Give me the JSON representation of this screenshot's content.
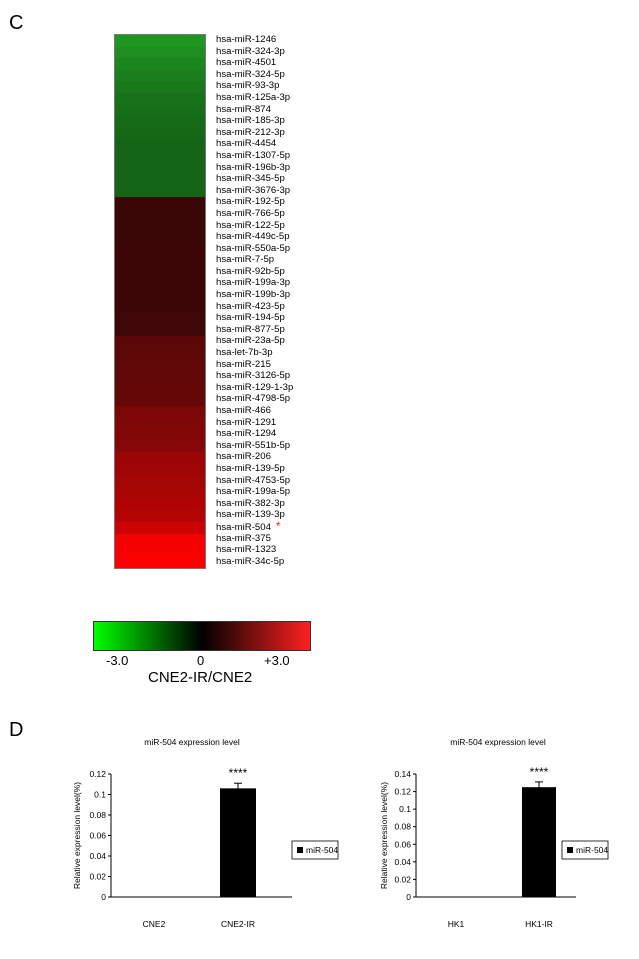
{
  "panel_c": {
    "label": "C",
    "heatmap_rows": [
      {
        "name": "hsa-miR-1246",
        "color": "#1e9620"
      },
      {
        "name": "hsa-miR-324-3p",
        "color": "#1d8e1f"
      },
      {
        "name": "hsa-miR-4501",
        "color": "#1b861d"
      },
      {
        "name": "hsa-miR-324-5p",
        "color": "#1a7f1c"
      },
      {
        "name": "hsa-miR-93-3p",
        "color": "#18781a"
      },
      {
        "name": "hsa-miR-125a-3p",
        "color": "#177219"
      },
      {
        "name": "hsa-miR-874",
        "color": "#166e18"
      },
      {
        "name": "hsa-miR-185-3p",
        "color": "#156b17"
      },
      {
        "name": "hsa-miR-212-3p",
        "color": "#146816"
      },
      {
        "name": "hsa-miR-4454",
        "color": "#146616"
      },
      {
        "name": "hsa-miR-1307-5p",
        "color": "#136415"
      },
      {
        "name": "hsa-miR-196b-3p",
        "color": "#136415"
      },
      {
        "name": "hsa-miR-345-5p",
        "color": "#136415"
      },
      {
        "name": "hsa-miR-3676-3p",
        "color": "#136415"
      },
      {
        "name": "hsa-miR-192-5p",
        "color": "#3a0606"
      },
      {
        "name": "hsa-miR-766-5p",
        "color": "#3a0606"
      },
      {
        "name": "hsa-miR-122-5p",
        "color": "#3b0606"
      },
      {
        "name": "hsa-miR-449c-5p",
        "color": "#3b0606"
      },
      {
        "name": "hsa-miR-550a-5p",
        "color": "#3c0606"
      },
      {
        "name": "hsa-miR-7-5p",
        "color": "#3c0606"
      },
      {
        "name": "hsa-miR-92b-5p",
        "color": "#3c0606"
      },
      {
        "name": "hsa-miR-199a-3p",
        "color": "#3d0606"
      },
      {
        "name": "hsa-miR-199b-3p",
        "color": "#3d0606"
      },
      {
        "name": "hsa-miR-423-5p",
        "color": "#3d0606"
      },
      {
        "name": "hsa-miR-194-5p",
        "color": "#3e0606"
      },
      {
        "name": "hsa-miR-877-5p",
        "color": "#3e0606"
      },
      {
        "name": "hsa-miR-23a-5p",
        "color": "#5c0707"
      },
      {
        "name": "hsa-let-7b-3p",
        "color": "#5e0707"
      },
      {
        "name": "hsa-miR-215",
        "color": "#600707"
      },
      {
        "name": "hsa-miR-3126-5p",
        "color": "#620707"
      },
      {
        "name": "hsa-miR-129-1-3p",
        "color": "#640707"
      },
      {
        "name": "hsa-miR-4798-5p",
        "color": "#660707"
      },
      {
        "name": "hsa-miR-466",
        "color": "#7d0707"
      },
      {
        "name": "hsa-miR-1291",
        "color": "#800707"
      },
      {
        "name": "hsa-miR-1294",
        "color": "#830707"
      },
      {
        "name": "hsa-miR-551b-5p",
        "color": "#860707"
      },
      {
        "name": "hsa-miR-206",
        "color": "#9c0505"
      },
      {
        "name": "hsa-miR-139-5p",
        "color": "#a00505"
      },
      {
        "name": "hsa-miR-4753-5p",
        "color": "#a40505"
      },
      {
        "name": "hsa-miR-199a-5p",
        "color": "#a80505"
      },
      {
        "name": "hsa-miR-382-3p",
        "color": "#b00404"
      },
      {
        "name": "hsa-miR-139-3p",
        "color": "#b40404"
      },
      {
        "name": "hsa-miR-504",
        "color": "#cc0303",
        "star": "*"
      },
      {
        "name": "hsa-miR-375",
        "color": "#f20202"
      },
      {
        "name": "hsa-miR-1323",
        "color": "#f60202"
      },
      {
        "name": "hsa-miR-34c-5p",
        "color": "#fa0202"
      }
    ],
    "colorbar": {
      "colors": [
        "#00ff00",
        "#000000",
        "#ff2020"
      ],
      "ticks": [
        "-3.0",
        "0",
        "+3.0"
      ],
      "title": "CNE2-IR/CNE2"
    }
  },
  "panel_d": {
    "label": "D"
  },
  "chart_data": [
    {
      "type": "bar",
      "title": "miR-504 expression level",
      "ylabel": "Relative expression level(%)",
      "categories": [
        "CNE2",
        "CNE2-IR"
      ],
      "series": [
        {
          "name": "miR-504",
          "values": [
            0.0,
            0.106
          ],
          "errors": [
            0.0,
            0.005
          ]
        }
      ],
      "ylim": [
        0,
        0.12
      ],
      "yticks": [
        "0",
        "0.02",
        "0.04",
        "0.06",
        "0.08",
        "0.1",
        "0.12"
      ],
      "annotation": "****",
      "annotation_category": "CNE2-IR",
      "bar_color": "#000000",
      "legend": "right"
    },
    {
      "type": "bar",
      "title": "miR-504 expression level",
      "ylabel": "Relative expression level(%)",
      "categories": [
        "HK1",
        "HK1-IR"
      ],
      "series": [
        {
          "name": "miR-504",
          "values": [
            0.0,
            0.125
          ],
          "errors": [
            0.0,
            0.006
          ]
        }
      ],
      "ylim": [
        0,
        0.14
      ],
      "yticks": [
        "0",
        "0.02",
        "0.04",
        "0.06",
        "0.08",
        "0.1",
        "0.12",
        "0.14"
      ],
      "annotation": "****",
      "annotation_category": "HK1-IR",
      "bar_color": "#000000",
      "legend": "right"
    }
  ]
}
